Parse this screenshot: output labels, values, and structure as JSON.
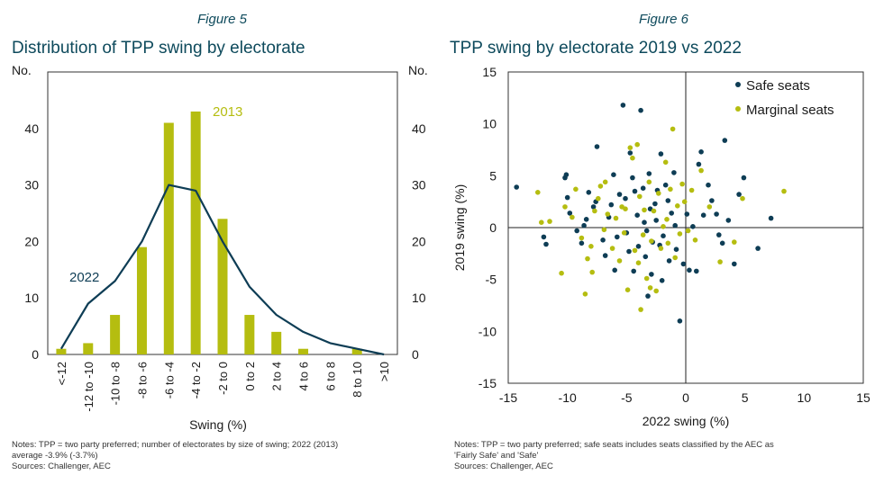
{
  "colors": {
    "navy": "#0e3d55",
    "olive": "#b5bd10",
    "title": "#0e4a5c"
  },
  "left": {
    "figure_label": "Figure 5",
    "title": "Distribution of TPP swing by electorate",
    "y_unit_left": "No.",
    "y_unit_right": "No.",
    "notes": [
      "Notes: TPP = two party preferred; number of electorates by size of swing; 2022 (2013)",
      "average -3.9% (-3.7%)",
      "Sources: Challenger, AEC"
    ]
  },
  "right": {
    "figure_label": "Figure 6",
    "title": "TPP swing by electorate 2019 vs 2022",
    "notes": [
      "Notes: TPP = two party preferred; safe seats includes seats classified by the AEC as",
      "'Fairly Safe' and 'Safe'",
      "Sources: Challenger, AEC"
    ]
  },
  "chart_data": [
    {
      "type": "bar",
      "title": "Distribution of TPP swing by electorate",
      "xlabel": "Swing (%)",
      "ylabel": "No.",
      "ylim": [
        0,
        50
      ],
      "yticks": [
        0,
        10,
        20,
        30,
        40
      ],
      "categories": [
        "<-12",
        "-12 to -10",
        "-10 to -8",
        "-8 to -6",
        "-6 to -4",
        "-4 to -2",
        "-2 to 0",
        "0 to 2",
        "2 to 4",
        "4 to 6",
        "6 to 8",
        "8 to 10",
        ">10"
      ],
      "series": [
        {
          "name": "2013",
          "kind": "bar",
          "values": [
            1,
            2,
            7,
            19,
            41,
            43,
            24,
            7,
            4,
            1,
            0,
            1,
            0
          ]
        },
        {
          "name": "2022",
          "kind": "line",
          "values": [
            1,
            9,
            13,
            20,
            30,
            29,
            20,
            12,
            7,
            4,
            2,
            1,
            0
          ]
        }
      ],
      "annotations": [
        "2013",
        "2022"
      ]
    },
    {
      "type": "scatter",
      "title": "TPP swing by electorate 2019 vs 2022",
      "xlabel": "2022 swing (%)",
      "ylabel": "2019 swing (%)",
      "xlim": [
        -15,
        15
      ],
      "ylim": [
        -15,
        15
      ],
      "xticks": [
        -15,
        -10,
        -5,
        0,
        5,
        10,
        15
      ],
      "yticks": [
        -15,
        -10,
        -5,
        0,
        5,
        10,
        15
      ],
      "legend": "top-right",
      "series": [
        {
          "name": "Safe seats",
          "points": [
            [
              -14.3,
              3.9
            ],
            [
              -12,
              -0.9
            ],
            [
              -11.8,
              -1.6
            ],
            [
              -10.2,
              4.8
            ],
            [
              -10.1,
              5.1
            ],
            [
              -10,
              2.9
            ],
            [
              -9.8,
              1.4
            ],
            [
              -9.2,
              -0.3
            ],
            [
              -8.8,
              -1.5
            ],
            [
              -8.6,
              0.2
            ],
            [
              -8.2,
              3.4
            ],
            [
              -7.8,
              2.0
            ],
            [
              -7.5,
              7.8
            ],
            [
              -7.6,
              2.5
            ],
            [
              -7,
              -1.2
            ],
            [
              -6.8,
              -2.7
            ],
            [
              -6.5,
              1.0
            ],
            [
              -6.3,
              2.2
            ],
            [
              -6.1,
              5.1
            ],
            [
              -5.8,
              -0.9
            ],
            [
              -5.6,
              3.2
            ],
            [
              -5.3,
              11.8
            ],
            [
              -5.1,
              2.8
            ],
            [
              -5,
              -0.5
            ],
            [
              -4.8,
              -2.3
            ],
            [
              -4.7,
              7.2
            ],
            [
              -4.5,
              4.8
            ],
            [
              -4.4,
              -4.2
            ],
            [
              -4.3,
              3.5
            ],
            [
              -4.1,
              1.2
            ],
            [
              -4,
              -1.8
            ],
            [
              -3.8,
              11.3
            ],
            [
              -3.6,
              3.8
            ],
            [
              -3.5,
              0.5
            ],
            [
              -3.4,
              -2.8
            ],
            [
              -3.3,
              -0.3
            ],
            [
              -3.1,
              5.2
            ],
            [
              -3,
              1.8
            ],
            [
              -2.9,
              -4.5
            ],
            [
              -2.8,
              -1.4
            ],
            [
              -2.6,
              2.3
            ],
            [
              -2.5,
              0.7
            ],
            [
              -2.4,
              3.6
            ],
            [
              -2.2,
              -1.7
            ],
            [
              -2.1,
              7.1
            ],
            [
              -1.9,
              -0.8
            ],
            [
              -1.7,
              4.1
            ],
            [
              -1.5,
              2.6
            ],
            [
              -1.4,
              -3.2
            ],
            [
              -1.2,
              1.4
            ],
            [
              -1,
              5.3
            ],
            [
              -0.9,
              0.2
            ],
            [
              -0.8,
              -2.1
            ],
            [
              -0.5,
              -9.0
            ],
            [
              -0.2,
              -3.5
            ],
            [
              0.1,
              1.3
            ],
            [
              0.3,
              -4.1
            ],
            [
              0.6,
              0.1
            ],
            [
              0.9,
              -4.2
            ],
            [
              1.1,
              6.1
            ],
            [
              1.3,
              7.3
            ],
            [
              1.5,
              1.2
            ],
            [
              1.9,
              4.1
            ],
            [
              2.2,
              2.6
            ],
            [
              2.6,
              1.3
            ],
            [
              3.1,
              -1.5
            ],
            [
              3.3,
              8.4
            ],
            [
              3.6,
              0.7
            ],
            [
              4.1,
              -3.5
            ],
            [
              4.5,
              3.2
            ],
            [
              4.9,
              4.8
            ],
            [
              6.1,
              -2.0
            ],
            [
              7.2,
              0.9
            ],
            [
              2.8,
              -0.7
            ],
            [
              -2,
              -5.1
            ],
            [
              -6,
              -4.1
            ],
            [
              -8.4,
              0.8
            ],
            [
              -3.2,
              -6.6
            ]
          ]
        },
        {
          "name": "Marginal seats",
          "points": [
            [
              -12.5,
              3.4
            ],
            [
              -12.2,
              0.5
            ],
            [
              -11.5,
              0.6
            ],
            [
              -10.5,
              -4.4
            ],
            [
              -10.2,
              2.0
            ],
            [
              -9.6,
              1.0
            ],
            [
              -9.3,
              3.7
            ],
            [
              -8.8,
              -1.0
            ],
            [
              -8.5,
              -6.4
            ],
            [
              -8.3,
              -3.0
            ],
            [
              -8,
              -1.8
            ],
            [
              -7.9,
              -4.3
            ],
            [
              -7.7,
              1.6
            ],
            [
              -7.4,
              2.8
            ],
            [
              -7.2,
              4.0
            ],
            [
              -6.9,
              -0.2
            ],
            [
              -6.6,
              1.3
            ],
            [
              -6.2,
              -2.0
            ],
            [
              -5.9,
              0.9
            ],
            [
              -5.6,
              -3.2
            ],
            [
              -5.4,
              2.0
            ],
            [
              -5.2,
              -0.5
            ],
            [
              -5.1,
              1.8
            ],
            [
              -4.9,
              -6.0
            ],
            [
              -4.7,
              7.7
            ],
            [
              -4.5,
              6.7
            ],
            [
              -4.3,
              -2.2
            ],
            [
              -4.1,
              8.0
            ],
            [
              -3.9,
              3.0
            ],
            [
              -3.8,
              -7.9
            ],
            [
              -3.6,
              -0.7
            ],
            [
              -3.5,
              1.7
            ],
            [
              -3.3,
              -4.9
            ],
            [
              -3.1,
              4.4
            ],
            [
              -2.9,
              -1.3
            ],
            [
              -2.7,
              1.6
            ],
            [
              -2.5,
              -6.1
            ],
            [
              -2.3,
              3.3
            ],
            [
              -2.1,
              -2.0
            ],
            [
              -1.9,
              0.1
            ],
            [
              -1.7,
              6.3
            ],
            [
              -1.5,
              -1.5
            ],
            [
              -1.3,
              3.7
            ],
            [
              -1.1,
              9.5
            ],
            [
              -0.9,
              -2.9
            ],
            [
              -0.7,
              2.1
            ],
            [
              -0.5,
              -0.6
            ],
            [
              -0.3,
              4.2
            ],
            [
              -0.1,
              2.5
            ],
            [
              0.2,
              -0.3
            ],
            [
              0.5,
              3.6
            ],
            [
              0.8,
              -1.2
            ],
            [
              1.3,
              5.5
            ],
            [
              2.0,
              2.0
            ],
            [
              2.9,
              -3.3
            ],
            [
              4.1,
              -1.4
            ],
            [
              4.8,
              2.8
            ],
            [
              8.3,
              3.5
            ],
            [
              -3,
              -5.8
            ],
            [
              -6.8,
              4.4
            ],
            [
              -1.6,
              0.8
            ],
            [
              -4,
              -3.4
            ]
          ]
        }
      ]
    }
  ]
}
